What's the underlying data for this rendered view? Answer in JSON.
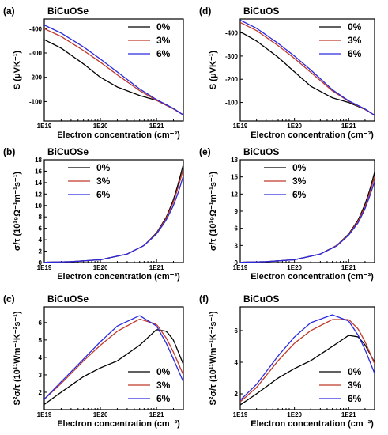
{
  "chart_data": [
    {
      "id": "a",
      "letter": "(a)",
      "title": "BiCuOSe",
      "type": "line",
      "xlabel": "Electron concentration (cm⁻³)",
      "ylabel": "S (μVK⁻¹)",
      "xscale": "log",
      "xlim": [
        1e+19,
        3e+21
      ],
      "ylim": [
        -20,
        -440
      ],
      "xticks": [
        1e+19,
        1e+20,
        1e+21
      ],
      "xtick_labels": [
        "1E19",
        "1E20",
        "1E21"
      ],
      "yticks": [
        -100,
        -200,
        -300,
        -400
      ],
      "ytick_labels": [
        "-100",
        "-200",
        "-300",
        "-400"
      ],
      "legend_position": "top-right",
      "x": [
        1e+19,
        2e+19,
        5e+19,
        1e+20,
        2e+20,
        5e+20,
        1e+21,
        2e+21,
        3e+21
      ],
      "series": [
        {
          "name": "0%",
          "color": "#000000",
          "values": [
            -355,
            -320,
            -255,
            -200,
            -160,
            -125,
            -105,
            -70,
            -45
          ]
        },
        {
          "name": "3%",
          "color": "#c0392b",
          "values": [
            -400,
            -368,
            -310,
            -262,
            -210,
            -145,
            -105,
            -70,
            -45
          ]
        },
        {
          "name": "6%",
          "color": "#2a2ae0",
          "values": [
            -415,
            -382,
            -325,
            -275,
            -222,
            -152,
            -108,
            -72,
            -45
          ]
        }
      ]
    },
    {
      "id": "d",
      "letter": "(d)",
      "title": "BiCuOS",
      "type": "line",
      "xlabel": "Electron concentration (cm⁻³)",
      "ylabel": "S (μVK⁻¹)",
      "xscale": "log",
      "xlim": [
        1e+19,
        3e+21
      ],
      "ylim": [
        -20,
        -460
      ],
      "xticks": [
        1e+19,
        1e+20,
        1e+21
      ],
      "xtick_labels": [
        "1E19",
        "1E20",
        "1E21"
      ],
      "yticks": [
        -100,
        -200,
        -300,
        -400
      ],
      "ytick_labels": [
        "-100",
        "-200",
        "-300",
        "-400"
      ],
      "legend_position": "top-right",
      "x": [
        1e+19,
        2e+19,
        5e+19,
        1e+20,
        2e+20,
        5e+20,
        1e+21,
        2e+21,
        3e+21
      ],
      "series": [
        {
          "name": "0%",
          "color": "#000000",
          "values": [
            -405,
            -365,
            -295,
            -232,
            -170,
            -120,
            -100,
            -70,
            -45
          ]
        },
        {
          "name": "3%",
          "color": "#c0392b",
          "values": [
            -445,
            -410,
            -345,
            -290,
            -230,
            -150,
            -105,
            -70,
            -45
          ]
        },
        {
          "name": "6%",
          "color": "#2a2ae0",
          "values": [
            -455,
            -420,
            -355,
            -300,
            -240,
            -155,
            -107,
            -72,
            -45
          ]
        }
      ]
    },
    {
      "id": "b",
      "letter": "(b)",
      "title": "BiCuOSe",
      "type": "line",
      "xlabel": "Electron concentration (cm⁻³)",
      "ylabel": "σ/τ (10¹⁹Ω⁻¹m⁻¹s⁻¹)",
      "xscale": "log",
      "xlim": [
        1e+19,
        3e+21
      ],
      "ylim": [
        0,
        18
      ],
      "xticks": [
        1e+19,
        1e+20,
        1e+21
      ],
      "xtick_labels": [
        "1E19",
        "1E20",
        "1E21"
      ],
      "yticks": [
        0,
        2,
        4,
        6,
        8,
        10,
        12,
        14,
        16,
        18
      ],
      "ytick_labels": [
        "0",
        "2",
        "4",
        "6",
        "8",
        "10",
        "12",
        "14",
        "16",
        "18"
      ],
      "legend_position": "top-left",
      "x": [
        1e+19,
        3e+19,
        1e+20,
        3e+20,
        6e+20,
        1e+21,
        1.5e+21,
        2e+21,
        2.5e+21,
        3e+21
      ],
      "series": [
        {
          "name": "0%",
          "color": "#000000",
          "values": [
            0.05,
            0.15,
            0.5,
            1.5,
            3.0,
            5.2,
            8.0,
            11.0,
            14.2,
            17.2
          ]
        },
        {
          "name": "3%",
          "color": "#c0392b",
          "values": [
            0.05,
            0.15,
            0.5,
            1.5,
            3.0,
            5.1,
            7.8,
            10.6,
            13.6,
            16.4
          ]
        },
        {
          "name": "6%",
          "color": "#2a2ae0",
          "values": [
            0.05,
            0.15,
            0.5,
            1.5,
            3.0,
            5.0,
            7.5,
            10.0,
            12.6,
            15.2
          ]
        }
      ]
    },
    {
      "id": "e",
      "letter": "(e)",
      "title": "BiCuOS",
      "type": "line",
      "xlabel": "Electron concentration (cm⁻³)",
      "ylabel": "σ/τ (10¹⁹Ω⁻¹m⁻¹s⁻¹)",
      "xscale": "log",
      "xlim": [
        1e+19,
        3e+21
      ],
      "ylim": [
        0,
        18
      ],
      "xticks": [
        1e+19,
        1e+20,
        1e+21
      ],
      "xtick_labels": [
        "1E19",
        "1E20",
        "1E21"
      ],
      "yticks": [
        0,
        3,
        6,
        9,
        12,
        15,
        18
      ],
      "ytick_labels": [
        "0",
        "3",
        "6",
        "9",
        "12",
        "15",
        "18"
      ],
      "legend_position": "top-left",
      "x": [
        1e+19,
        3e+19,
        1e+20,
        3e+20,
        6e+20,
        1e+21,
        1.5e+21,
        2e+21,
        2.5e+21,
        3e+21
      ],
      "series": [
        {
          "name": "0%",
          "color": "#000000",
          "values": [
            0.05,
            0.15,
            0.5,
            1.5,
            3.0,
            5.0,
            7.5,
            10.2,
            13.0,
            15.8
          ]
        },
        {
          "name": "3%",
          "color": "#c0392b",
          "values": [
            0.05,
            0.15,
            0.5,
            1.5,
            3.0,
            4.9,
            7.3,
            9.8,
            12.5,
            15.0
          ]
        },
        {
          "name": "6%",
          "color": "#2a2ae0",
          "values": [
            0.05,
            0.15,
            0.5,
            1.5,
            2.9,
            4.8,
            7.0,
            9.4,
            11.9,
            14.2
          ]
        }
      ]
    },
    {
      "id": "c",
      "letter": "(c)",
      "title": "BiCuOSe",
      "type": "line",
      "xlabel": "Electron concentration (cm⁻³)",
      "ylabel": "S²σ/τ (10¹¹Wm⁻¹K⁻²s⁻¹)",
      "xscale": "log",
      "xlim": [
        1e+19,
        3e+21
      ],
      "ylim": [
        1.0,
        6.9
      ],
      "xticks": [
        1e+19,
        1e+20,
        1e+21
      ],
      "xtick_labels": [
        "1E19",
        "1E20",
        "1E21"
      ],
      "yticks": [
        2,
        3,
        4,
        5,
        6
      ],
      "ytick_labels": [
        "2",
        "3",
        "4",
        "5",
        "6"
      ],
      "legend_position": "bottom-right",
      "x": [
        1e+19,
        2e+19,
        5e+19,
        1e+20,
        2e+20,
        5e+20,
        1e+21,
        1.5e+21,
        2e+21,
        3e+21
      ],
      "series": [
        {
          "name": "0%",
          "color": "#000000",
          "values": [
            1.3,
            2.0,
            2.9,
            3.4,
            3.8,
            4.7,
            5.6,
            5.5,
            5.0,
            3.6
          ]
        },
        {
          "name": "3%",
          "color": "#c0392b",
          "values": [
            1.6,
            2.5,
            3.8,
            4.7,
            5.5,
            6.2,
            5.9,
            5.1,
            4.3,
            3.0
          ]
        },
        {
          "name": "6%",
          "color": "#2a2ae0",
          "values": [
            1.6,
            2.6,
            3.9,
            4.9,
            5.8,
            6.4,
            5.8,
            4.8,
            3.9,
            2.6
          ]
        }
      ]
    },
    {
      "id": "f",
      "letter": "(f)",
      "title": "BiCuOS",
      "type": "line",
      "xlabel": "Electron concentration (cm⁻³)",
      "ylabel": "S²σ/τ (10¹¹Wm⁻¹K⁻²s⁻¹)",
      "xscale": "log",
      "xlim": [
        1e+19,
        3e+21
      ],
      "ylim": [
        1.0,
        7.5
      ],
      "xticks": [
        1e+19,
        1e+20,
        1e+21
      ],
      "xtick_labels": [
        "1E19",
        "1E20",
        "1E21"
      ],
      "yticks": [
        2,
        4,
        6
      ],
      "ytick_labels": [
        "2",
        "4",
        "6"
      ],
      "legend_position": "bottom-right",
      "x": [
        1e+19,
        2e+19,
        5e+19,
        1e+20,
        2e+20,
        5e+20,
        1e+21,
        1.5e+21,
        2e+21,
        3e+21
      ],
      "series": [
        {
          "name": "0%",
          "color": "#000000",
          "values": [
            1.3,
            2.0,
            3.0,
            3.6,
            4.1,
            5.0,
            5.7,
            5.6,
            5.1,
            4.0
          ]
        },
        {
          "name": "3%",
          "color": "#c0392b",
          "values": [
            1.5,
            2.4,
            4.1,
            5.2,
            6.0,
            6.7,
            6.7,
            6.1,
            5.3,
            3.9
          ]
        },
        {
          "name": "6%",
          "color": "#2a2ae0",
          "values": [
            1.6,
            2.6,
            4.4,
            5.6,
            6.5,
            7.0,
            6.6,
            5.7,
            4.8,
            3.3
          ]
        }
      ]
    }
  ]
}
